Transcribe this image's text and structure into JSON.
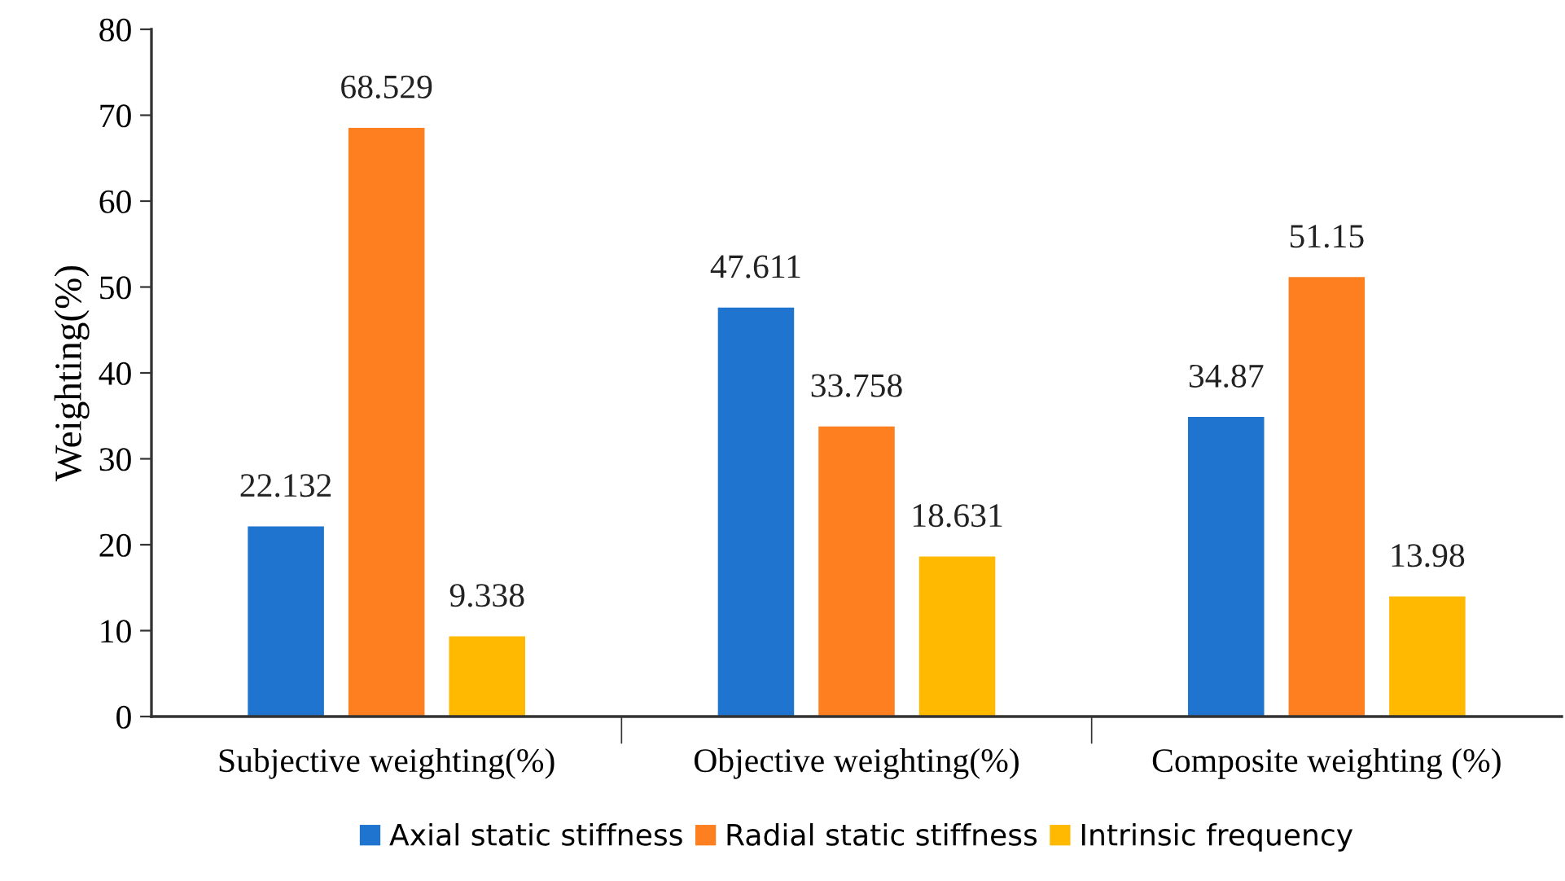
{
  "chart_data": {
    "type": "bar",
    "ylabel": "Weighting(%)",
    "categories": [
      "Subjective weighting(%)",
      "Objective weighting(%)",
      "Composite weighting (%)"
    ],
    "series": [
      {
        "name": "Axial static stiffness",
        "color": "#1f74d0",
        "values": [
          22.132,
          47.611,
          34.87
        ]
      },
      {
        "name": "Radial static stiffness",
        "color": "#fd7f20",
        "values": [
          68.529,
          33.758,
          51.15
        ]
      },
      {
        "name": "Intrinsic frequency",
        "color": "#ffb900",
        "values": [
          9.338,
          18.631,
          13.98
        ]
      }
    ],
    "ylim": [
      0,
      80
    ],
    "yticks": [
      0,
      10,
      20,
      30,
      40,
      50,
      60,
      70,
      80
    ],
    "grid": false,
    "legend": "bottom",
    "data_labels": true
  }
}
